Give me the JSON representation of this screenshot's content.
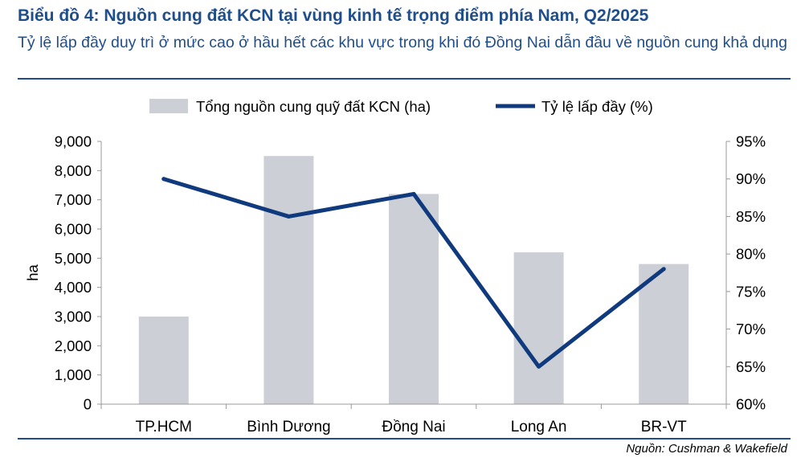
{
  "header": {
    "title": "Biểu đồ 4: Nguồn cung đất KCN tại vùng kinh tế trọng điểm phía Nam, Q2/2025",
    "subtitle": "Tỷ lệ lấp đầy duy trì ở mức cao ở hầu hết các khu vực trong khi đó Đồng Nai dẫn đầu về nguồn cung khả dụng"
  },
  "footer": {
    "source": "Nguồn: Cushman & Wakefield"
  },
  "colors": {
    "bar": "#ccd0d6",
    "line": "#0f3a7d",
    "axis": "#999999",
    "title": "#1f4e8c"
  },
  "chart_data": {
    "type": "bar+line",
    "categories": [
      "TP.HCM",
      "Bình Dương",
      "Đồng Nai",
      "Long An",
      "BR-VT"
    ],
    "series": [
      {
        "name": "Tổng nguồn cung quỹ đất KCN (ha)",
        "type": "bar",
        "axis": "left",
        "values": [
          3000,
          8500,
          7200,
          5200,
          4800
        ]
      },
      {
        "name": "Tỷ lệ lấp đầy (%)",
        "type": "line",
        "axis": "right",
        "values": [
          90,
          85,
          88,
          65,
          78
        ]
      }
    ],
    "ylabel": "ha",
    "ylim": [
      0,
      9000
    ],
    "y_ticks": [
      "0",
      "1,000",
      "2,000",
      "3,000",
      "4,000",
      "5,000",
      "6,000",
      "7,000",
      "8,000",
      "9,000"
    ],
    "y2lim": [
      60,
      95
    ],
    "y2_ticks": [
      "60%",
      "65%",
      "70%",
      "75%",
      "80%",
      "85%",
      "90%",
      "95%"
    ],
    "legend_position": "top",
    "grid": false
  }
}
